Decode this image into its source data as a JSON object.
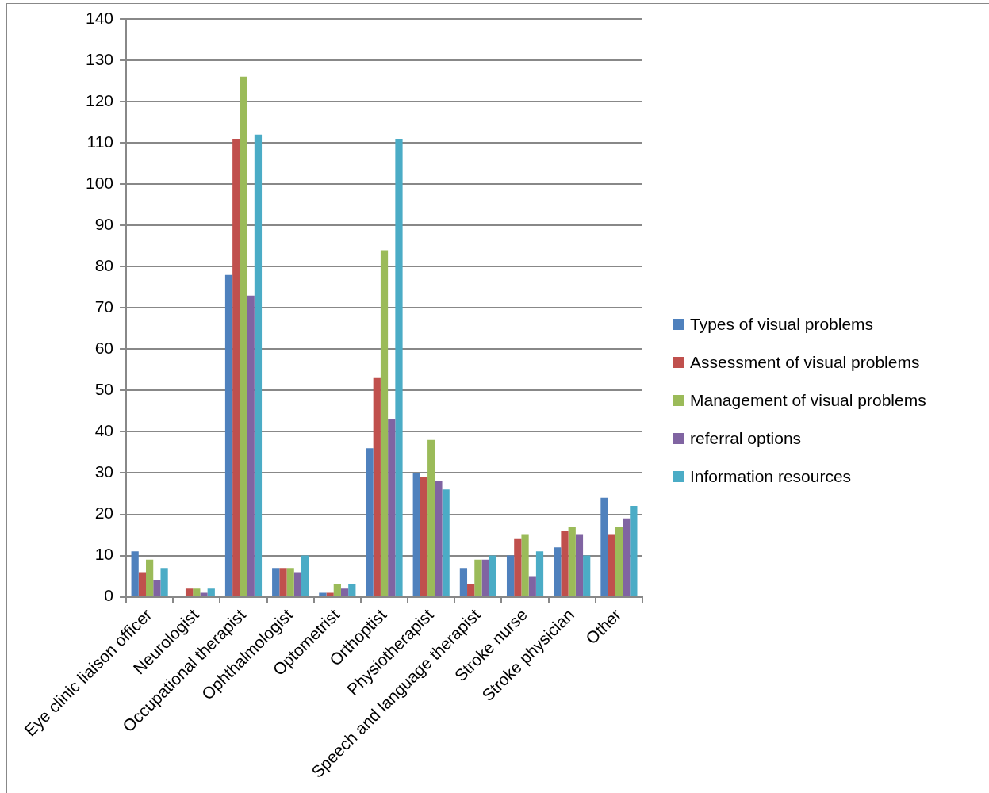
{
  "chart_data": {
    "type": "bar",
    "categories": [
      "Eye clinic liaison officer",
      "Neurologist",
      "Occupational therapist",
      "Ophthalmologist",
      "Optometrist",
      "Orthoptist",
      "Physiotherapist",
      "Speech and language therapist",
      "Stroke nurse",
      "Stroke physician",
      "Other"
    ],
    "series": [
      {
        "name": "Types of visual problems",
        "color": "#4f81bd",
        "values": [
          11,
          0,
          78,
          7,
          1,
          36,
          30,
          7,
          10,
          12,
          24
        ]
      },
      {
        "name": "Assessment of visual problems",
        "color": "#c0504d",
        "values": [
          6,
          2,
          111,
          7,
          1,
          53,
          29,
          3,
          14,
          16,
          15
        ]
      },
      {
        "name": "Management of visual problems",
        "color": "#9bbb59",
        "values": [
          9,
          2,
          126,
          7,
          3,
          84,
          38,
          9,
          15,
          17,
          17
        ]
      },
      {
        "name": "referral options",
        "color": "#8064a2",
        "values": [
          4,
          1,
          73,
          6,
          2,
          43,
          28,
          9,
          5,
          15,
          19
        ]
      },
      {
        "name": "Information resources",
        "color": "#4bacc6",
        "values": [
          7,
          2,
          112,
          10,
          3,
          111,
          26,
          10,
          11,
          10,
          22
        ]
      }
    ],
    "ylim": [
      0,
      140
    ],
    "yticks": [
      0,
      10,
      20,
      30,
      40,
      50,
      60,
      70,
      80,
      90,
      100,
      110,
      120,
      130,
      140
    ],
    "grid": "y",
    "legend": "right"
  }
}
